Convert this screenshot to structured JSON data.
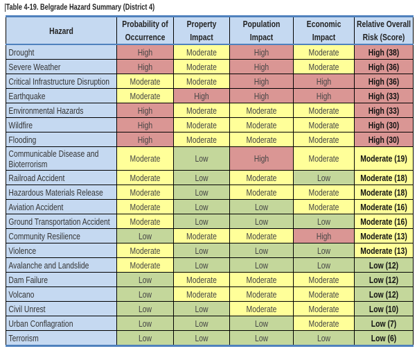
{
  "title": "Table 4-19. Belgrade Hazard Summary (District 4)",
  "headers": [
    "Hazard",
    "Probability of Occurrence",
    "Property Impact",
    "Population Impact",
    "Economic Impact",
    "Relative Overall Risk (Score)"
  ],
  "colors": {
    "header": "#c5d9f1",
    "High": "#da9694",
    "Moderate": "#ffff99",
    "Low": "#c4d79b",
    "border_accent": "#4f81bd"
  },
  "rows": [
    {
      "hazard": "Drought",
      "values": [
        "High",
        "Moderate",
        "High",
        "Moderate"
      ],
      "risk_level": "High",
      "risk": "High (38)"
    },
    {
      "hazard": "Severe Weather",
      "values": [
        "High",
        "Moderate",
        "High",
        "Moderate"
      ],
      "risk_level": "High",
      "risk": "High (36)"
    },
    {
      "hazard": "Critical Infrastructure Disruption",
      "values": [
        "Moderate",
        "Moderate",
        "High",
        "High"
      ],
      "risk_level": "High",
      "risk": "High (36)"
    },
    {
      "hazard": "Earthquake",
      "values": [
        "Moderate",
        "High",
        "High",
        "High"
      ],
      "risk_level": "High",
      "risk": "High (33)"
    },
    {
      "hazard": "Environmental Hazards",
      "values": [
        "High",
        "Moderate",
        "Moderate",
        "Moderate"
      ],
      "risk_level": "High",
      "risk": "High (33)"
    },
    {
      "hazard": "Wildfire",
      "values": [
        "High",
        "Moderate",
        "Moderate",
        "Moderate"
      ],
      "risk_level": "High",
      "risk": "High (30)"
    },
    {
      "hazard": "Flooding",
      "values": [
        "High",
        "Moderate",
        "Moderate",
        "Moderate"
      ],
      "risk_level": "High",
      "risk": "High (30)"
    },
    {
      "hazard": "Communicable Disease and Bioterrorism",
      "values": [
        "Moderate",
        "Low",
        "High",
        "Moderate"
      ],
      "risk_level": "Moderate",
      "risk": "Moderate (19)",
      "tall": true
    },
    {
      "hazard": "Railroad Accident",
      "values": [
        "Moderate",
        "Low",
        "Moderate",
        "Low"
      ],
      "risk_level": "Moderate",
      "risk": "Moderate (18)"
    },
    {
      "hazard": "Hazardous Materials Release",
      "values": [
        "Moderate",
        "Low",
        "Moderate",
        "Moderate"
      ],
      "risk_level": "Moderate",
      "risk": "Moderate (18)"
    },
    {
      "hazard": "Aviation Accident",
      "values": [
        "Moderate",
        "Low",
        "Low",
        "Moderate"
      ],
      "risk_level": "Moderate",
      "risk": "Moderate (16)"
    },
    {
      "hazard": "Ground Transportation Accident",
      "values": [
        "Moderate",
        "Low",
        "Low",
        "Low"
      ],
      "risk_level": "Moderate",
      "risk": "Moderate (16)"
    },
    {
      "hazard": "Community Resilience",
      "values": [
        "Low",
        "Moderate",
        "Moderate",
        "High"
      ],
      "risk_level": "Moderate",
      "risk": "Moderate (13)"
    },
    {
      "hazard": "Violence",
      "values": [
        "Moderate",
        "Low",
        "Low",
        "Low"
      ],
      "risk_level": "Moderate",
      "risk": "Moderate (13)"
    },
    {
      "hazard": "Avalanche and Landslide",
      "values": [
        "Moderate",
        "Low",
        "Low",
        "Low"
      ],
      "risk_level": "Low",
      "risk": "Low (12)"
    },
    {
      "hazard": "Dam Failure",
      "values": [
        "Low",
        "Moderate",
        "Moderate",
        "Moderate"
      ],
      "risk_level": "Low",
      "risk": "Low (12)"
    },
    {
      "hazard": "Volcano",
      "values": [
        "Low",
        "Moderate",
        "Moderate",
        "Moderate"
      ],
      "risk_level": "Low",
      "risk": "Low (12)"
    },
    {
      "hazard": "Civil Unrest",
      "values": [
        "Low",
        "Low",
        "Moderate",
        "Moderate"
      ],
      "risk_level": "Low",
      "risk": "Low (10)"
    },
    {
      "hazard": "Urban Conflagration",
      "values": [
        "Low",
        "Low",
        "Low",
        "Moderate"
      ],
      "risk_level": "Low",
      "risk": "Low (7)"
    },
    {
      "hazard": "Terrorism",
      "values": [
        "Low",
        "Low",
        "Low",
        "Low"
      ],
      "risk_level": "Low",
      "risk": "Low (6)"
    }
  ]
}
